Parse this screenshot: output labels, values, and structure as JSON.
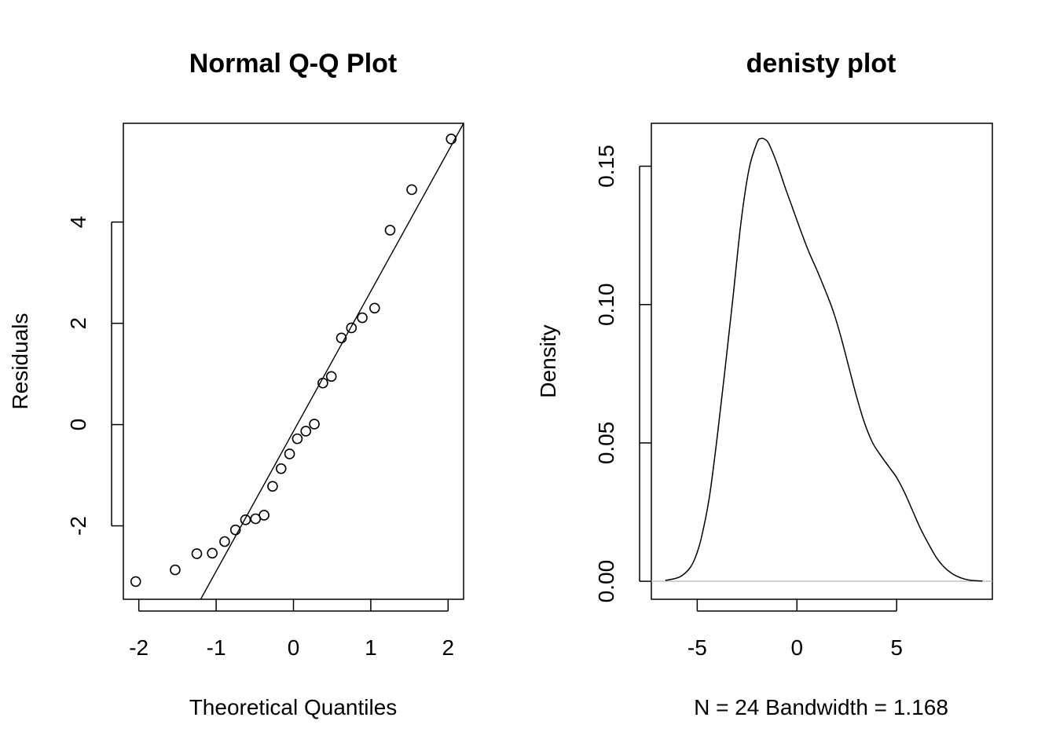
{
  "chart_data": [
    {
      "type": "scatter",
      "title": "Normal Q-Q Plot",
      "xlabel": "Theoretical Quantiles",
      "ylabel": "Residuals",
      "xlim": [
        -2.2,
        2.2
      ],
      "ylim": [
        -3.45,
        5.95
      ],
      "xticks": [
        -2,
        -1,
        0,
        1,
        2
      ],
      "xtick_labels": [
        "-2",
        "-1",
        "0",
        "1",
        "2"
      ],
      "yticks": [
        -2,
        0,
        2,
        4
      ],
      "ytick_labels": [
        "-2",
        "0",
        "2",
        "4"
      ],
      "points": [
        {
          "x": -2.04,
          "y": -3.1
        },
        {
          "x": -1.53,
          "y": -2.87
        },
        {
          "x": -1.25,
          "y": -2.55
        },
        {
          "x": -1.05,
          "y": -2.54
        },
        {
          "x": -0.89,
          "y": -2.31
        },
        {
          "x": -0.75,
          "y": -2.08
        },
        {
          "x": -0.62,
          "y": -1.88
        },
        {
          "x": -0.49,
          "y": -1.86
        },
        {
          "x": -0.38,
          "y": -1.79
        },
        {
          "x": -0.27,
          "y": -1.22
        },
        {
          "x": -0.16,
          "y": -0.87
        },
        {
          "x": -0.05,
          "y": -0.58
        },
        {
          "x": 0.05,
          "y": -0.28
        },
        {
          "x": 0.16,
          "y": -0.13
        },
        {
          "x": 0.27,
          "y": 0.01
        },
        {
          "x": 0.38,
          "y": 0.82
        },
        {
          "x": 0.49,
          "y": 0.95
        },
        {
          "x": 0.62,
          "y": 1.71
        },
        {
          "x": 0.75,
          "y": 1.91
        },
        {
          "x": 0.89,
          "y": 2.11
        },
        {
          "x": 1.05,
          "y": 2.3
        },
        {
          "x": 1.25,
          "y": 3.84
        },
        {
          "x": 1.53,
          "y": 4.64
        },
        {
          "x": 2.04,
          "y": 5.64
        }
      ],
      "reference_line": {
        "x1": -1.2,
        "y1": -3.45,
        "x2": 2.2,
        "y2": 5.95
      }
    },
    {
      "type": "line",
      "title": "denisty plot",
      "xlabel": "N = 24   Bandwidth = 1.168",
      "ylabel": "Density",
      "xlim": [
        -7.3,
        9.8
      ],
      "ylim": [
        -0.0065,
        0.1655
      ],
      "xticks": [
        -5,
        0,
        5
      ],
      "xtick_labels": [
        "-5",
        "0",
        "5"
      ],
      "yticks": [
        0.0,
        0.05,
        0.1,
        0.15
      ],
      "ytick_labels": [
        "0.00",
        "0.05",
        "0.10",
        "0.15"
      ],
      "baseline": 0,
      "x": [
        -6.6,
        -5.9,
        -5.4,
        -5.1,
        -4.8,
        -4.4,
        -4.0,
        -3.6,
        -3.2,
        -2.8,
        -2.4,
        -2.0,
        -1.8,
        -1.6,
        -1.4,
        -1.0,
        -0.6,
        -0.2,
        0.2,
        0.6,
        1.0,
        1.4,
        1.8,
        2.2,
        2.6,
        3.0,
        3.4,
        3.8,
        4.2,
        4.6,
        5.0,
        5.4,
        5.8,
        6.2,
        6.6,
        7.0,
        7.4,
        7.8,
        8.2,
        8.6,
        9.0,
        9.3
      ],
      "y": [
        0.0003,
        0.0015,
        0.0045,
        0.0085,
        0.0155,
        0.03,
        0.052,
        0.077,
        0.103,
        0.13,
        0.149,
        0.1585,
        0.16,
        0.1597,
        0.158,
        0.151,
        0.1425,
        0.1345,
        0.1265,
        0.119,
        0.1125,
        0.1055,
        0.098,
        0.0885,
        0.0775,
        0.0665,
        0.057,
        0.05,
        0.0455,
        0.0415,
        0.0375,
        0.032,
        0.0255,
        0.019,
        0.0135,
        0.0085,
        0.005,
        0.0027,
        0.0013,
        0.0005,
        0.0002,
        0.0001
      ]
    }
  ]
}
